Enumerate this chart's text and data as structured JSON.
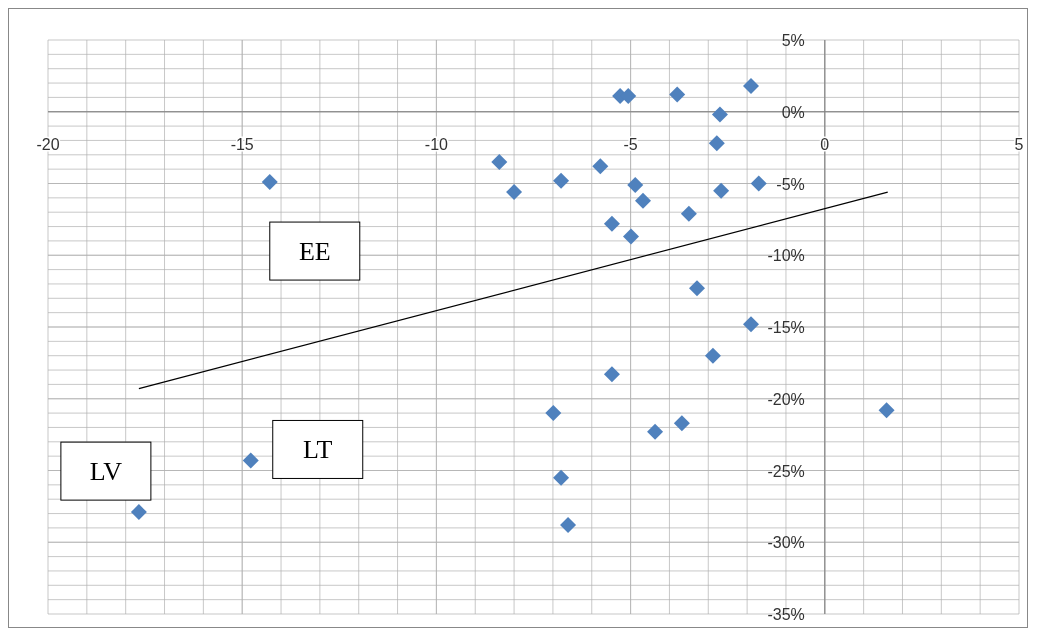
{
  "chart_data": {
    "type": "scatter",
    "grid": true,
    "xlim": [
      -20,
      5
    ],
    "xticks": [
      -20,
      -15,
      -10,
      -5,
      0,
      5
    ],
    "ylim": [
      -35,
      5
    ],
    "yticks": [
      {
        "value": 5,
        "label": "5%"
      },
      {
        "value": 0,
        "label": "0%"
      },
      {
        "value": -5,
        "label": "-5%"
      },
      {
        "value": -10,
        "label": "-10%"
      },
      {
        "value": -15,
        "label": "-15%"
      },
      {
        "value": -20,
        "label": "-20%"
      },
      {
        "value": -25,
        "label": "-25%"
      },
      {
        "value": -30,
        "label": "-30%"
      },
      {
        "value": -35,
        "label": "-35%"
      }
    ],
    "series": [
      {
        "color": "#4f81bd",
        "marker": "diamond",
        "x": [
          -17.66,
          -14.78,
          -14.29,
          -8.38,
          -8.0,
          -6.79,
          -6.99,
          -6.79,
          -6.61,
          -5.78,
          -5.48,
          -5.48,
          -5.27,
          -5.06,
          -4.99,
          -4.88,
          -4.68,
          -4.37,
          -3.8,
          -3.68,
          -3.5,
          -3.29,
          -2.88,
          -2.78,
          -2.7,
          -2.67,
          -1.9,
          -1.9,
          -1.7,
          1.59
        ],
        "values": [
          -27.9,
          -24.3,
          -4.9,
          -3.5,
          -5.6,
          -4.8,
          -21.0,
          -25.5,
          -28.8,
          -3.8,
          -7.8,
          -18.3,
          1.1,
          1.1,
          -8.7,
          -5.1,
          -6.2,
          -22.3,
          1.2,
          -21.7,
          -7.1,
          -12.3,
          -17.0,
          -2.2,
          -0.2,
          -5.5,
          1.8,
          -14.8,
          -5.0,
          -20.8
        ]
      },
      {
        "type": "line",
        "marker": "none",
        "color": "#000000",
        "x": [
          -17.66,
          1.62
        ],
        "values": [
          -19.3,
          -5.6
        ]
      }
    ],
    "annotations": [
      {
        "text": "EE",
        "x": -14.29,
        "y": -4.9
      },
      {
        "text": "LT",
        "x": -14.78,
        "y": -24.3
      },
      {
        "text": "LV",
        "x": -17.66,
        "y": -27.9
      }
    ]
  }
}
